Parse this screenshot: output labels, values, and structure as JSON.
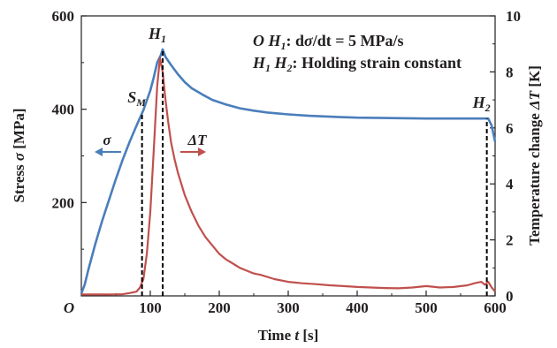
{
  "chart_data": {
    "type": "line",
    "x_axis": {
      "label_pre": "Time ",
      "label_var": "t",
      "label_post": " [s]",
      "range": [
        0,
        600
      ],
      "ticks": [
        100,
        200,
        300,
        400,
        500,
        600
      ],
      "origin_label": "O"
    },
    "y_left": {
      "label_pre": "Stress ",
      "label_var": "σ",
      "label_post": " [MPa]",
      "range": [
        0,
        600
      ],
      "ticks": [
        200,
        400,
        600
      ]
    },
    "y_right": {
      "label_pre": "Temperature change ",
      "label_var": "ΔT",
      "label_post": " [K]",
      "range": [
        0,
        10
      ],
      "ticks": [
        0,
        2,
        4,
        6,
        8,
        10
      ]
    },
    "series": [
      {
        "name": "σ",
        "axis": "left",
        "color": "#4a7ebb",
        "x": [
          0,
          5,
          10,
          20,
          30,
          40,
          50,
          60,
          70,
          80,
          90,
          100,
          105,
          110,
          115,
          118,
          122,
          130,
          140,
          150,
          160,
          175,
          190,
          210,
          230,
          250,
          270,
          300,
          330,
          360,
          400,
          450,
          500,
          550,
          580,
          590,
          595,
          600
        ],
        "y": [
          5,
          25,
          55,
          110,
          160,
          205,
          250,
          292,
          330,
          365,
          398,
          440,
          468,
          500,
          515,
          528,
          512,
          495,
          475,
          458,
          445,
          432,
          420,
          410,
          402,
          397,
          393,
          389,
          386,
          384,
          382,
          381,
          380,
          380,
          380,
          380,
          365,
          330
        ]
      },
      {
        "name": "ΔT",
        "axis": "right",
        "color": "#c0504d",
        "x": [
          0,
          20,
          40,
          60,
          70,
          80,
          85,
          90,
          95,
          100,
          105,
          110,
          114,
          118,
          122,
          126,
          130,
          135,
          140,
          150,
          160,
          170,
          180,
          190,
          200,
          210,
          220,
          230,
          240,
          250,
          260,
          280,
          300,
          320,
          340,
          360,
          380,
          400,
          420,
          440,
          460,
          480,
          500,
          520,
          540,
          560,
          570,
          580,
          585,
          590,
          595,
          600
        ],
        "y": [
          0.05,
          0.05,
          0.05,
          0.06,
          0.1,
          0.15,
          0.3,
          0.6,
          1.5,
          3.0,
          5.2,
          7.5,
          8.5,
          8.0,
          7.0,
          6.2,
          5.5,
          4.9,
          4.4,
          3.6,
          3.0,
          2.5,
          2.1,
          1.8,
          1.5,
          1.3,
          1.15,
          1.0,
          0.9,
          0.8,
          0.75,
          0.6,
          0.5,
          0.45,
          0.42,
          0.38,
          0.35,
          0.32,
          0.3,
          0.28,
          0.27,
          0.3,
          0.35,
          0.3,
          0.32,
          0.38,
          0.45,
          0.5,
          0.4,
          0.5,
          0.3,
          0.15
        ]
      }
    ],
    "markers": [
      {
        "label": "S",
        "sub": "M",
        "x": 88
      },
      {
        "label": "H",
        "sub": "1",
        "x": 118
      },
      {
        "label": "H",
        "sub": "2",
        "x": 588
      }
    ],
    "annotations": {
      "line1_a": "O H",
      "line1_a_sub": "1",
      "line1_b": ": d",
      "line1_c": "σ",
      "line1_d": "/dt = 5 MPa/s",
      "line2_a": "H",
      "line2_a_sub": "1",
      "line2_b": " H",
      "line2_b_sub": "2",
      "line2_c": ": Holding strain constant",
      "sigma_arrow": "σ",
      "dt_arrow": "ΔT"
    },
    "colors": {
      "stress": "#4a7ebb",
      "temperature": "#c0504d",
      "text": "#231f20"
    }
  }
}
